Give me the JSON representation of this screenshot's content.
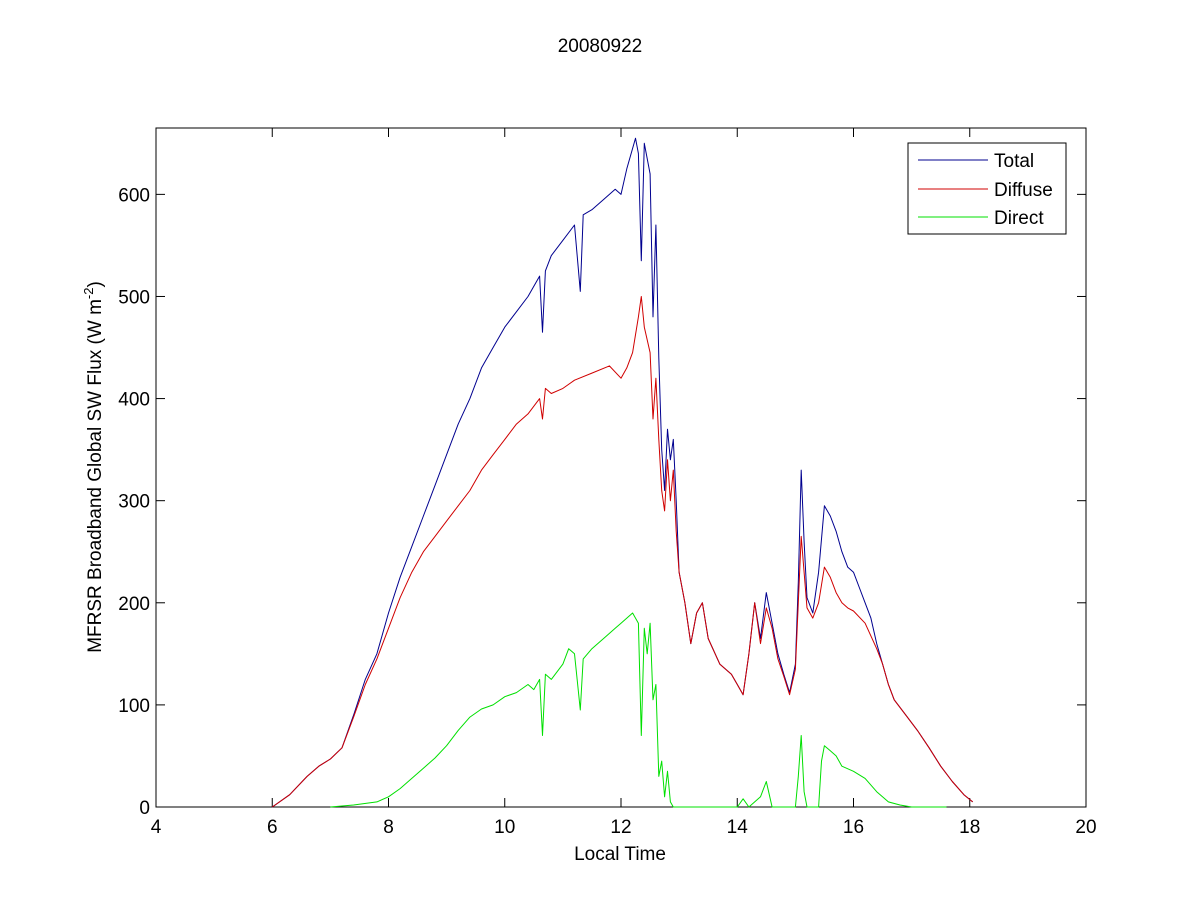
{
  "chart_data": {
    "type": "line",
    "title": "20080922",
    "xlabel": "Local Time",
    "ylabel": "MFRSR Broadband Global SW Flux (W m",
    "ylabel_superscript": "-2",
    "ylabel_suffix": ")",
    "xlim": [
      4,
      20
    ],
    "ylim": [
      0,
      665
    ],
    "xticks": [
      4,
      6,
      8,
      10,
      12,
      14,
      16,
      18,
      20
    ],
    "yticks": [
      0,
      100,
      200,
      300,
      400,
      500,
      600
    ],
    "grid": false,
    "legend_position": "top-right",
    "series": [
      {
        "name": "Total",
        "color": "#00008F",
        "points": [
          [
            6.0,
            0
          ],
          [
            6.3,
            12
          ],
          [
            6.6,
            30
          ],
          [
            6.8,
            40
          ],
          [
            7.0,
            47
          ],
          [
            7.2,
            58
          ],
          [
            7.4,
            90
          ],
          [
            7.6,
            125
          ],
          [
            7.8,
            150
          ],
          [
            8.0,
            190
          ],
          [
            8.2,
            225
          ],
          [
            8.4,
            255
          ],
          [
            8.6,
            285
          ],
          [
            8.8,
            315
          ],
          [
            9.0,
            345
          ],
          [
            9.2,
            375
          ],
          [
            9.4,
            400
          ],
          [
            9.6,
            430
          ],
          [
            9.8,
            450
          ],
          [
            10.0,
            470
          ],
          [
            10.2,
            485
          ],
          [
            10.4,
            500
          ],
          [
            10.6,
            520
          ],
          [
            10.65,
            465
          ],
          [
            10.7,
            525
          ],
          [
            10.8,
            540
          ],
          [
            11.0,
            555
          ],
          [
            11.2,
            570
          ],
          [
            11.3,
            505
          ],
          [
            11.35,
            580
          ],
          [
            11.5,
            585
          ],
          [
            11.7,
            595
          ],
          [
            11.9,
            605
          ],
          [
            12.0,
            600
          ],
          [
            12.1,
            625
          ],
          [
            12.25,
            655
          ],
          [
            12.3,
            640
          ],
          [
            12.35,
            535
          ],
          [
            12.4,
            650
          ],
          [
            12.5,
            620
          ],
          [
            12.55,
            480
          ],
          [
            12.6,
            570
          ],
          [
            12.65,
            440
          ],
          [
            12.7,
            350
          ],
          [
            12.75,
            310
          ],
          [
            12.8,
            370
          ],
          [
            12.85,
            340
          ],
          [
            12.9,
            360
          ],
          [
            12.95,
            300
          ],
          [
            13.0,
            230
          ],
          [
            13.1,
            200
          ],
          [
            13.2,
            160
          ],
          [
            13.3,
            190
          ],
          [
            13.4,
            200
          ],
          [
            13.5,
            165
          ],
          [
            13.7,
            140
          ],
          [
            13.9,
            130
          ],
          [
            14.0,
            120
          ],
          [
            14.1,
            110
          ],
          [
            14.2,
            150
          ],
          [
            14.3,
            200
          ],
          [
            14.4,
            165
          ],
          [
            14.5,
            210
          ],
          [
            14.6,
            180
          ],
          [
            14.7,
            150
          ],
          [
            14.8,
            130
          ],
          [
            14.9,
            112
          ],
          [
            15.0,
            140
          ],
          [
            15.05,
            220
          ],
          [
            15.1,
            330
          ],
          [
            15.15,
            260
          ],
          [
            15.2,
            205
          ],
          [
            15.3,
            190
          ],
          [
            15.4,
            230
          ],
          [
            15.5,
            295
          ],
          [
            15.6,
            285
          ],
          [
            15.7,
            270
          ],
          [
            15.8,
            250
          ],
          [
            15.9,
            235
          ],
          [
            16.0,
            230
          ],
          [
            16.1,
            215
          ],
          [
            16.2,
            200
          ],
          [
            16.3,
            185
          ],
          [
            16.4,
            160
          ],
          [
            16.5,
            140
          ],
          [
            16.6,
            120
          ],
          [
            16.7,
            105
          ],
          [
            16.9,
            90
          ],
          [
            17.1,
            75
          ],
          [
            17.3,
            58
          ],
          [
            17.5,
            40
          ],
          [
            17.7,
            25
          ],
          [
            17.9,
            12
          ],
          [
            18.05,
            5
          ]
        ]
      },
      {
        "name": "Diffuse",
        "color": "#D00000",
        "points": [
          [
            6.0,
            0
          ],
          [
            6.3,
            12
          ],
          [
            6.6,
            30
          ],
          [
            6.8,
            40
          ],
          [
            7.0,
            47
          ],
          [
            7.2,
            58
          ],
          [
            7.4,
            88
          ],
          [
            7.6,
            120
          ],
          [
            7.8,
            145
          ],
          [
            8.0,
            175
          ],
          [
            8.2,
            205
          ],
          [
            8.4,
            230
          ],
          [
            8.6,
            250
          ],
          [
            8.8,
            265
          ],
          [
            9.0,
            280
          ],
          [
            9.2,
            295
          ],
          [
            9.4,
            310
          ],
          [
            9.6,
            330
          ],
          [
            9.8,
            345
          ],
          [
            10.0,
            360
          ],
          [
            10.2,
            375
          ],
          [
            10.4,
            385
          ],
          [
            10.6,
            400
          ],
          [
            10.65,
            380
          ],
          [
            10.7,
            410
          ],
          [
            10.8,
            405
          ],
          [
            11.0,
            410
          ],
          [
            11.2,
            418
          ],
          [
            11.5,
            425
          ],
          [
            11.8,
            432
          ],
          [
            12.0,
            420
          ],
          [
            12.1,
            430
          ],
          [
            12.2,
            445
          ],
          [
            12.3,
            480
          ],
          [
            12.35,
            500
          ],
          [
            12.4,
            470
          ],
          [
            12.5,
            445
          ],
          [
            12.55,
            380
          ],
          [
            12.6,
            420
          ],
          [
            12.65,
            360
          ],
          [
            12.7,
            310
          ],
          [
            12.75,
            290
          ],
          [
            12.8,
            340
          ],
          [
            12.85,
            300
          ],
          [
            12.9,
            330
          ],
          [
            12.95,
            270
          ],
          [
            13.0,
            230
          ],
          [
            13.1,
            200
          ],
          [
            13.2,
            160
          ],
          [
            13.3,
            190
          ],
          [
            13.4,
            200
          ],
          [
            13.5,
            165
          ],
          [
            13.7,
            140
          ],
          [
            13.9,
            130
          ],
          [
            14.0,
            120
          ],
          [
            14.1,
            110
          ],
          [
            14.2,
            150
          ],
          [
            14.3,
            200
          ],
          [
            14.4,
            160
          ],
          [
            14.5,
            195
          ],
          [
            14.6,
            175
          ],
          [
            14.7,
            145
          ],
          [
            14.8,
            128
          ],
          [
            14.9,
            110
          ],
          [
            15.0,
            135
          ],
          [
            15.05,
            200
          ],
          [
            15.1,
            265
          ],
          [
            15.15,
            230
          ],
          [
            15.2,
            195
          ],
          [
            15.3,
            185
          ],
          [
            15.4,
            200
          ],
          [
            15.5,
            235
          ],
          [
            15.6,
            225
          ],
          [
            15.7,
            210
          ],
          [
            15.8,
            200
          ],
          [
            15.9,
            195
          ],
          [
            16.0,
            192
          ],
          [
            16.2,
            180
          ],
          [
            16.4,
            155
          ],
          [
            16.5,
            140
          ],
          [
            16.6,
            120
          ],
          [
            16.7,
            105
          ],
          [
            16.9,
            90
          ],
          [
            17.1,
            75
          ],
          [
            17.3,
            58
          ],
          [
            17.5,
            40
          ],
          [
            17.7,
            25
          ],
          [
            17.9,
            12
          ],
          [
            18.05,
            5
          ]
        ]
      },
      {
        "name": "Direct",
        "color": "#00E000",
        "points": [
          [
            7.0,
            0
          ],
          [
            7.4,
            2
          ],
          [
            7.8,
            5
          ],
          [
            8.0,
            10
          ],
          [
            8.2,
            18
          ],
          [
            8.4,
            28
          ],
          [
            8.6,
            38
          ],
          [
            8.8,
            48
          ],
          [
            9.0,
            60
          ],
          [
            9.2,
            75
          ],
          [
            9.4,
            88
          ],
          [
            9.6,
            96
          ],
          [
            9.8,
            100
          ],
          [
            10.0,
            108
          ],
          [
            10.2,
            112
          ],
          [
            10.4,
            120
          ],
          [
            10.5,
            115
          ],
          [
            10.6,
            125
          ],
          [
            10.65,
            70
          ],
          [
            10.7,
            130
          ],
          [
            10.8,
            125
          ],
          [
            11.0,
            140
          ],
          [
            11.1,
            155
          ],
          [
            11.2,
            150
          ],
          [
            11.3,
            95
          ],
          [
            11.35,
            145
          ],
          [
            11.5,
            155
          ],
          [
            11.7,
            165
          ],
          [
            11.9,
            175
          ],
          [
            12.0,
            180
          ],
          [
            12.2,
            190
          ],
          [
            12.3,
            180
          ],
          [
            12.35,
            70
          ],
          [
            12.4,
            175
          ],
          [
            12.45,
            150
          ],
          [
            12.5,
            180
          ],
          [
            12.55,
            105
          ],
          [
            12.6,
            120
          ],
          [
            12.65,
            30
          ],
          [
            12.7,
            45
          ],
          [
            12.75,
            10
          ],
          [
            12.8,
            35
          ],
          [
            12.85,
            5
          ],
          [
            12.9,
            0
          ],
          [
            13.5,
            0
          ],
          [
            14.0,
            0
          ],
          [
            14.1,
            8
          ],
          [
            14.2,
            0
          ],
          [
            14.4,
            10
          ],
          [
            14.5,
            25
          ],
          [
            14.6,
            0
          ],
          [
            15.0,
            0
          ],
          [
            15.05,
            30
          ],
          [
            15.1,
            70
          ],
          [
            15.15,
            15
          ],
          [
            15.2,
            0
          ],
          [
            15.4,
            0
          ],
          [
            15.45,
            45
          ],
          [
            15.5,
            60
          ],
          [
            15.6,
            55
          ],
          [
            15.7,
            50
          ],
          [
            15.8,
            40
          ],
          [
            16.0,
            35
          ],
          [
            16.2,
            28
          ],
          [
            16.4,
            15
          ],
          [
            16.6,
            5
          ],
          [
            16.8,
            2
          ],
          [
            17.0,
            0
          ],
          [
            17.6,
            0
          ]
        ]
      }
    ]
  }
}
